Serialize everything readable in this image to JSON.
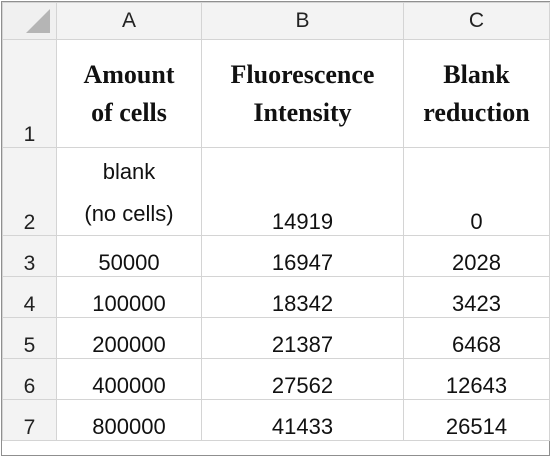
{
  "columns": [
    "A",
    "B",
    "C"
  ],
  "headers": {
    "a": [
      "Amount",
      "of cells"
    ],
    "b": [
      "Fluorescence",
      "Intensity"
    ],
    "c": [
      "Blank",
      "reduction"
    ]
  },
  "row_numbers": [
    "1",
    "2",
    "3",
    "4",
    "5",
    "6",
    "7"
  ],
  "row2": {
    "a": [
      "blank",
      "(no cells)"
    ],
    "b": "14919",
    "c": "0"
  },
  "rows": [
    {
      "a": "50000",
      "b": "16947",
      "c": "2028"
    },
    {
      "a": "100000",
      "b": "18342",
      "c": "3423"
    },
    {
      "a": "200000",
      "b": "21387",
      "c": "6468"
    },
    {
      "a": "400000",
      "b": "27562",
      "c": "12643"
    },
    {
      "a": "800000",
      "b": "41433",
      "c": "26514"
    }
  ]
}
